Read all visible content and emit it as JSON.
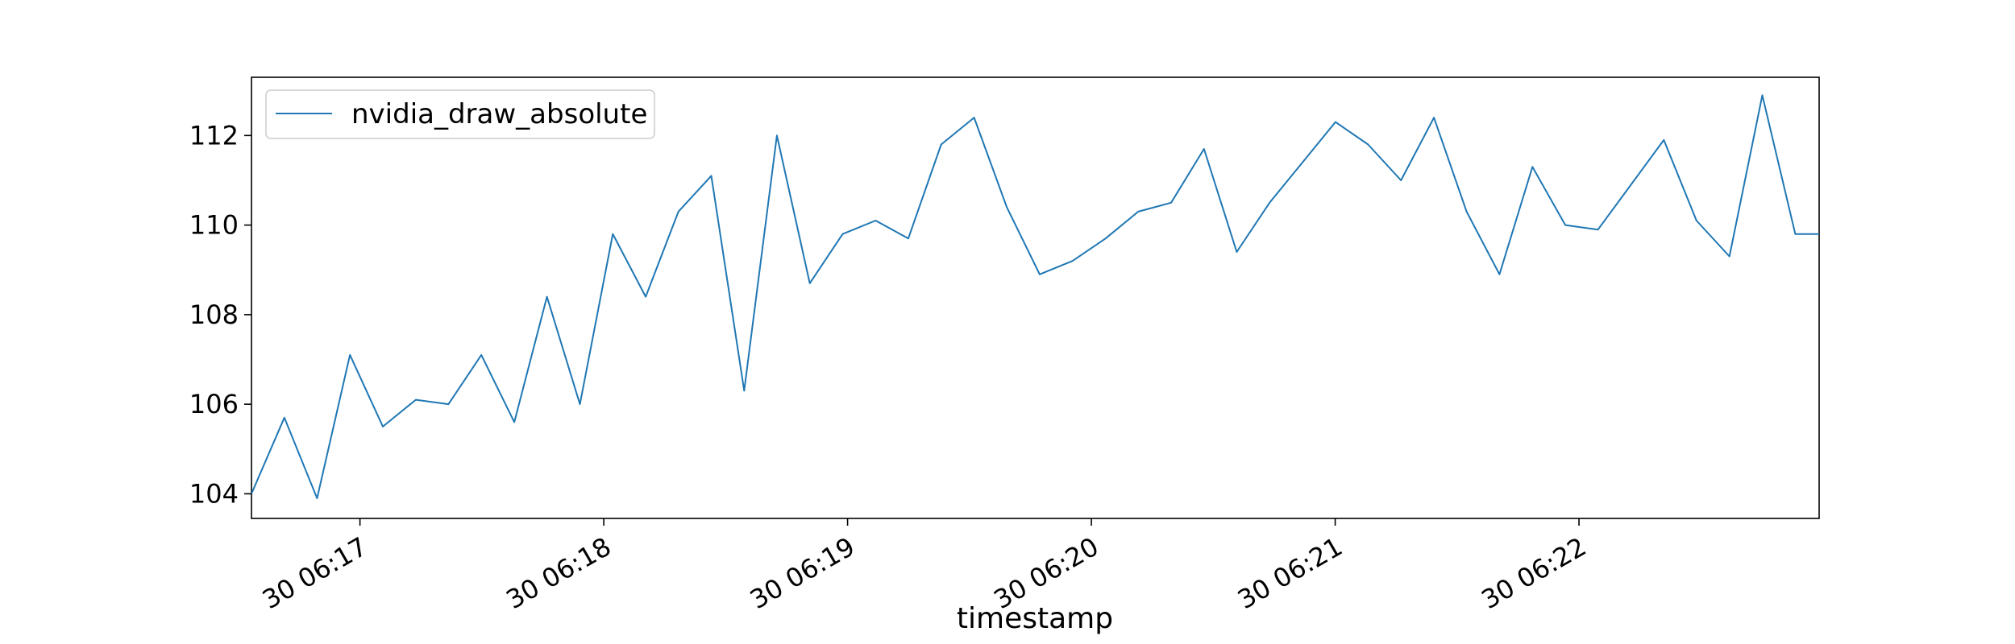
{
  "chart_data": {
    "type": "line",
    "title": "",
    "xlabel": "timestamp",
    "ylabel": "",
    "x_tick_labels": [
      "30 06:17",
      "30 06:18",
      "30 06:19",
      "30 06:20",
      "30 06:21",
      "30 06:22"
    ],
    "x_tick_positions": [
      1.655,
      2.655,
      3.655,
      4.655,
      5.655,
      6.655
    ],
    "xlim": [
      1.21,
      7.64
    ],
    "y_ticks": [
      104,
      106,
      108,
      110,
      112
    ],
    "ylim": [
      103.45,
      113.3
    ],
    "grid": false,
    "legend": "upper-left",
    "x_units": "minute index (06:16 = 1), sample spacing ~8.1 s",
    "series": [
      {
        "name": "nvidia_draw_absolute",
        "color": "#1f77b4",
        "x": [
          1.21,
          1.345,
          1.479,
          1.614,
          1.749,
          1.884,
          2.018,
          2.153,
          2.288,
          2.422,
          2.557,
          2.692,
          2.827,
          2.961,
          3.096,
          3.231,
          3.365,
          3.5,
          3.635,
          3.77,
          3.904,
          4.039,
          4.174,
          4.308,
          4.443,
          4.578,
          4.713,
          4.847,
          4.982,
          5.117,
          5.251,
          5.386,
          5.521,
          5.656,
          5.79,
          5.925,
          6.06,
          6.194,
          6.329,
          6.464,
          6.599,
          6.733,
          6.868,
          7.003,
          7.137,
          7.272,
          7.407,
          7.542,
          7.64
        ],
        "y": [
          104.0,
          105.7,
          103.9,
          107.1,
          105.5,
          106.1,
          106.0,
          107.1,
          105.6,
          108.4,
          106.0,
          109.8,
          108.4,
          110.3,
          111.1,
          106.3,
          112.0,
          108.7,
          109.8,
          110.1,
          109.7,
          111.8,
          112.4,
          110.4,
          108.9,
          109.2,
          109.7,
          110.3,
          110.5,
          111.7,
          109.4,
          110.5,
          111.4,
          112.3,
          111.8,
          111.0,
          112.4,
          110.3,
          108.9,
          111.3,
          110.0,
          109.9,
          110.9,
          111.9,
          110.1,
          109.3,
          112.9,
          109.8,
          109.8
        ]
      }
    ]
  }
}
